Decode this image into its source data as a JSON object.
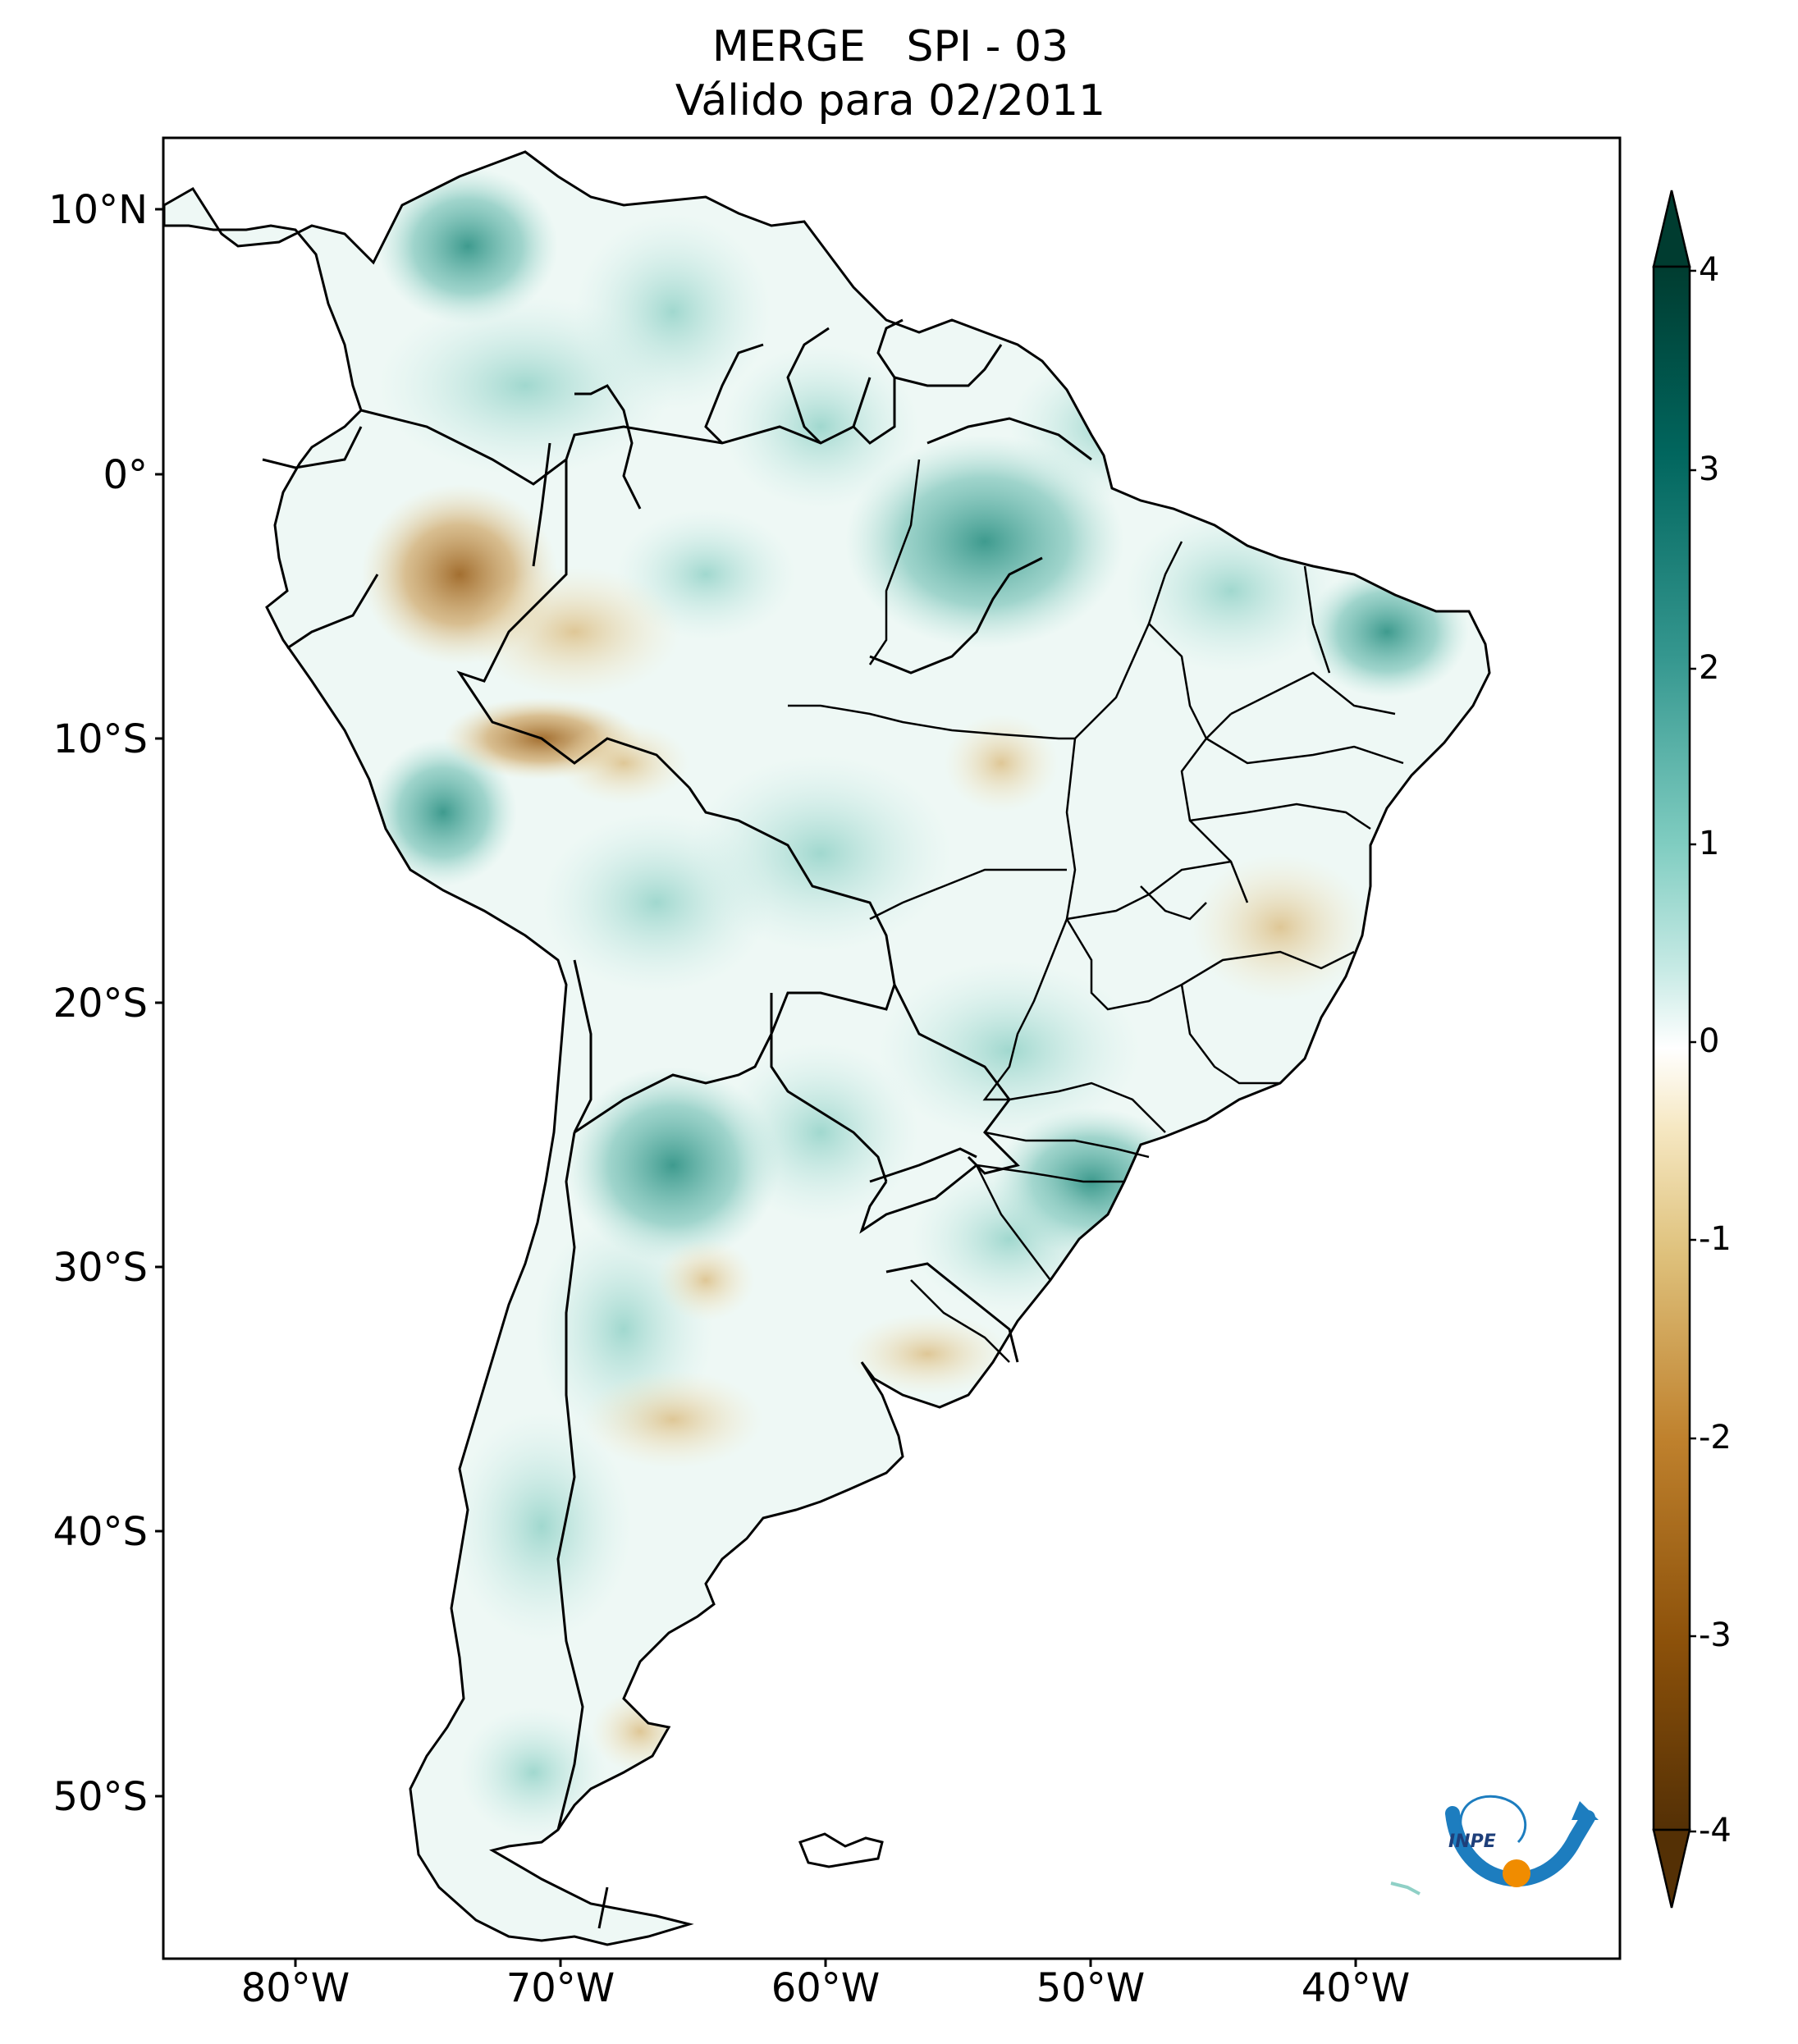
{
  "title": {
    "line1": "MERGE   SPI - 03",
    "line2": "Válido para 02/2011"
  },
  "map": {
    "region": "South America",
    "lon_range": [
      -85,
      -30
    ],
    "lat_range": [
      -56,
      12.5
    ],
    "lat_ticks": [
      "10°N",
      "0°",
      "10°S",
      "20°S",
      "30°S",
      "40°S",
      "50°S"
    ],
    "lon_ticks": [
      "80°W",
      "70°W",
      "60°W",
      "50°W",
      "40°W"
    ],
    "wet_color": "#1f8a7c",
    "dry_color": "#a5691f",
    "land_base_color": "#f6fbfa",
    "ocean_color": "#ffffff",
    "border_color": "#000000"
  },
  "colorbar": {
    "ticks": [
      "4",
      "3",
      "2",
      "1",
      "0",
      "-1",
      "-2",
      "-3",
      "-4"
    ],
    "range": [
      -4,
      4
    ],
    "extend": "both",
    "colors": [
      "#543005",
      "#8c510a",
      "#bf812d",
      "#dfc27d",
      "#f6e8c3",
      "#ffffff",
      "#c7eae5",
      "#80cdc1",
      "#35978f",
      "#01665e",
      "#003c30"
    ]
  },
  "logo": {
    "text": "INPE",
    "arc_color": "#1d7dbf",
    "dot_color": "#f08c00"
  }
}
